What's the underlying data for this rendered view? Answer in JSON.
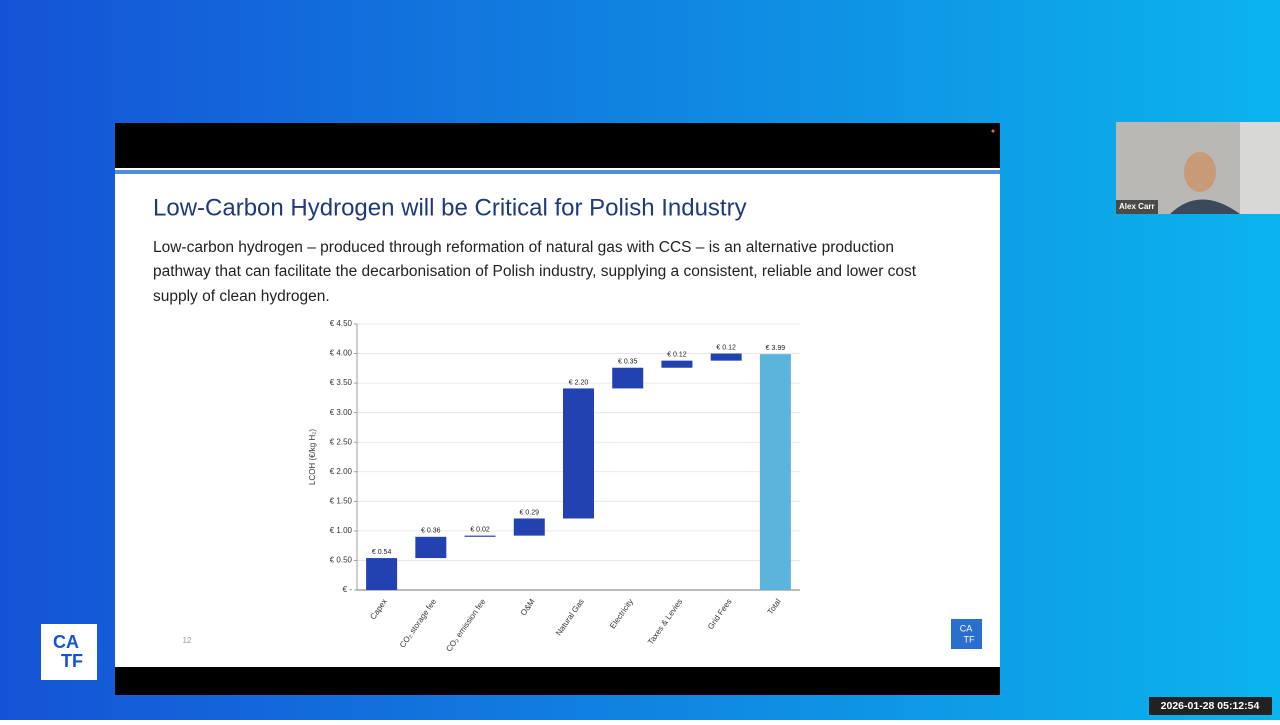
{
  "slide": {
    "title": "Low-Carbon Hydrogen will be Critical for Polish Industry",
    "body": [
      "Low-carbon hydrogen – produced through reformation of natural gas with CCS – is an alternative production",
      "pathway that can facilitate the decarbonisation of Polish industry, supplying a consistent, reliable and lower cost",
      "supply of clean hydrogen."
    ],
    "page_number": "12",
    "logo": [
      "CA",
      "TF"
    ]
  },
  "chart_data": {
    "type": "waterfall",
    "y_label": "LCOH (€/kg H₂)",
    "categories": [
      "Capex",
      "CO₂ storage fee",
      "CO₂ emission fee",
      "O&M",
      "Natural Gas",
      "Electricity",
      "Taxes & Levies",
      "Grid Fees",
      "Total"
    ],
    "values": [
      0.54,
      0.36,
      0.02,
      0.29,
      2.2,
      0.35,
      0.12,
      0.12,
      3.99
    ],
    "value_labels": [
      "€ 0.54",
      "€ 0.36",
      "€ 0.02",
      "€ 0.29",
      "€ 2.20",
      "€ 0.35",
      "€ 0.12",
      "€ 0.12",
      "€ 3.99"
    ],
    "colors": [
      "#2142b0",
      "#2142b0",
      "#2142b0",
      "#2142b0",
      "#2142b0",
      "#2142b0",
      "#2142b0",
      "#2142b0",
      "#5ab4dc"
    ],
    "ylim": [
      0,
      4.5
    ],
    "yticks": [
      {
        "value": 0,
        "label": "€ -"
      },
      {
        "value": 0.5,
        "label": "€ 0.50"
      },
      {
        "value": 1,
        "label": "€ 1.00"
      },
      {
        "value": 1.5,
        "label": "€ 1.50"
      },
      {
        "value": 2,
        "label": "€ 2.00"
      },
      {
        "value": 2.5,
        "label": "€ 2.50"
      },
      {
        "value": 3,
        "label": "€ 3.00"
      },
      {
        "value": 3.5,
        "label": "€ 3.50"
      },
      {
        "value": 4,
        "label": "€ 4.00"
      },
      {
        "value": 4.5,
        "label": "€ 4.50"
      }
    ],
    "grid": true
  },
  "participant": {
    "name": "Alex Carr"
  },
  "timestamp": "2026-01-28 05:12:54"
}
